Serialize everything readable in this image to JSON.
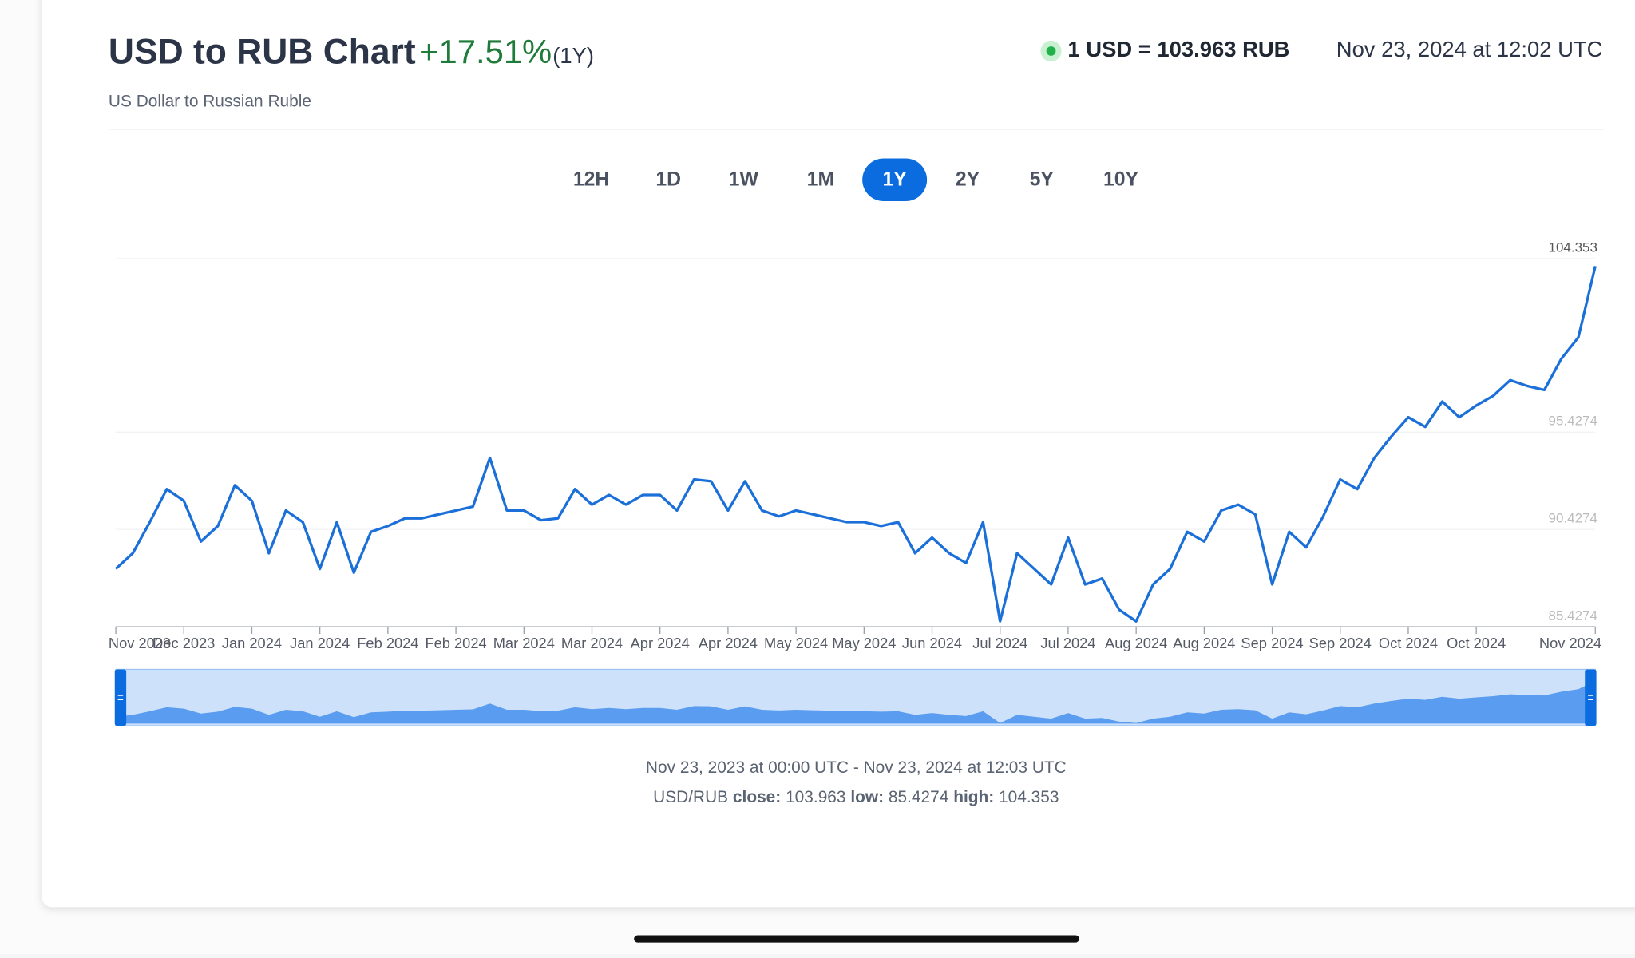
{
  "header": {
    "title": "USD to RUB Chart",
    "change": "+17.51%",
    "change_period": "(1Y)",
    "subtitle": "US Dollar to Russian Ruble",
    "rate": "1 USD = 103.963 RUB",
    "timestamp": "Nov 23, 2024 at 12:02 UTC"
  },
  "ranges": {
    "options": [
      "12H",
      "1D",
      "1W",
      "1M",
      "1Y",
      "2Y",
      "5Y",
      "10Y"
    ],
    "active": 4
  },
  "chart_data": {
    "type": "line",
    "color": "#1a6fd8",
    "grid": true,
    "categories": [
      "Nov 2023",
      null,
      null,
      null,
      "Dec 2023",
      null,
      null,
      null,
      "Jan 2024",
      null,
      null,
      null,
      "Jan 2024",
      null,
      null,
      null,
      "Feb 2024",
      null,
      null,
      null,
      "Feb 2024",
      null,
      null,
      null,
      "Mar 2024",
      null,
      null,
      null,
      "Mar 2024",
      null,
      null,
      null,
      "Apr 2024",
      null,
      null,
      null,
      "Apr 2024",
      null,
      null,
      null,
      "May 2024",
      null,
      null,
      null,
      "May 2024",
      null,
      null,
      null,
      "Jun 2024",
      null,
      null,
      null,
      "Jul 2024",
      null,
      null,
      null,
      "Jul 2024",
      null,
      null,
      null,
      "Aug 2024",
      null,
      null,
      null,
      "Aug 2024",
      null,
      null,
      null,
      "Sep 2024",
      null,
      null,
      null,
      "Sep 2024",
      null,
      null,
      null,
      "Oct 2024",
      null,
      null,
      null,
      "Oct 2024",
      null,
      null,
      null,
      null,
      null,
      null,
      "Nov 2024"
    ],
    "series": [
      {
        "name": "USD/RUB",
        "values": [
          88.4,
          89.2,
          90.8,
          92.5,
          91.9,
          89.8,
          90.6,
          92.7,
          91.9,
          89.2,
          91.4,
          90.8,
          88.4,
          90.8,
          88.2,
          90.3,
          90.6,
          91.0,
          91.0,
          91.2,
          91.4,
          91.6,
          94.1,
          91.4,
          91.4,
          90.9,
          91.0,
          92.5,
          91.7,
          92.2,
          91.7,
          92.2,
          92.2,
          91.4,
          93.0,
          92.9,
          91.4,
          92.9,
          91.4,
          91.1,
          91.4,
          91.2,
          91.0,
          90.8,
          90.8,
          90.6,
          90.8,
          89.2,
          90.0,
          89.2,
          88.7,
          90.8,
          85.7,
          89.2,
          88.4,
          87.6,
          90.0,
          87.6,
          87.9,
          86.3,
          85.7,
          87.6,
          88.4,
          90.3,
          89.8,
          91.4,
          91.7,
          91.2,
          87.6,
          90.3,
          89.5,
          91.1,
          93.0,
          92.5,
          94.1,
          95.2,
          96.2,
          95.7,
          97.0,
          96.2,
          96.8,
          97.3,
          98.1,
          97.8,
          97.6,
          99.2,
          100.3,
          103.963
        ]
      }
    ],
    "ylim": [
      85.4274,
      104.353
    ],
    "yticks": [
      85.4274,
      90.4274,
      95.4274,
      104.353
    ]
  },
  "footer": {
    "range": "Nov 23, 2023 at 00:00 UTC - Nov 23, 2024 at 12:03 UTC",
    "pair": "USD/RUB",
    "close_label": "close:",
    "close": 103.963,
    "low_label": "low:",
    "low": 85.4274,
    "high_label": "high:",
    "high": 104.353
  }
}
